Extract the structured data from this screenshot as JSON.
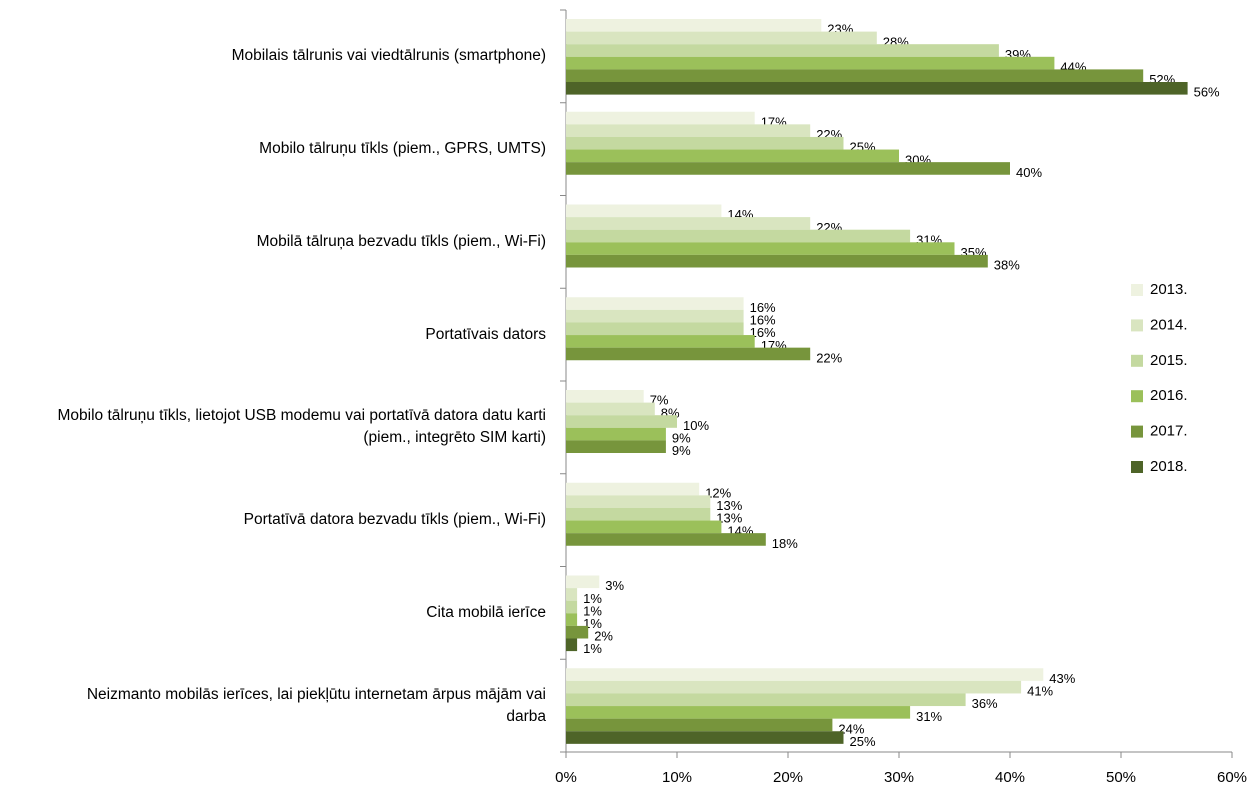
{
  "chart_data": {
    "type": "bar",
    "orientation": "horizontal",
    "categories": [
      "Mobilais tālrunis vai viedtālrunis (smartphone)",
      "Mobilo tālruņu tīkls (piem., GPRS, UMTS)",
      "Mobilā tālruņa bezvadu tīkls (piem., Wi-Fi)",
      "Portatīvais dators",
      "Mobilo tālruņu tīkls, lietojot USB modemu vai portatīvā datora datu karti (piem., integrēto SIM karti)",
      "Portatīvā datora bezvadu tīkls (piem., Wi-Fi)",
      "Cita mobilā ierīce",
      "Neizmanto mobilās ierīces, lai piekļūtu internetam ārpus mājām vai darba"
    ],
    "series": [
      {
        "name": "2013.",
        "color": "#eef2e0",
        "values": [
          23,
          17,
          14,
          16,
          7,
          12,
          3,
          43
        ],
        "value_labels": [
          "23%",
          "17%",
          "14%",
          "16%",
          "7%",
          "12%",
          "3%",
          "43%"
        ]
      },
      {
        "name": "2014.",
        "color": "#d9e5c0",
        "values": [
          28,
          22,
          22,
          16,
          8,
          13,
          1,
          41
        ],
        "value_labels": [
          "28%",
          "22%",
          "22%",
          "16%",
          "8%",
          "13%",
          "1%",
          "41%"
        ]
      },
      {
        "name": "2015.",
        "color": "#c4d9a0",
        "values": [
          39,
          25,
          31,
          16,
          10,
          13,
          1,
          36
        ],
        "value_labels": [
          "39%",
          "25%",
          "31%",
          "16%",
          "10%",
          "13%",
          "1%",
          "36%"
        ]
      },
      {
        "name": "2016.",
        "color": "#9bc05a",
        "values": [
          44,
          30,
          35,
          17,
          9,
          14,
          1,
          31
        ],
        "value_labels": [
          "44%",
          "30%",
          "35%",
          "17%",
          "9%",
          "14%",
          "1%",
          "31%"
        ]
      },
      {
        "name": "2017.",
        "color": "#77953c",
        "values": [
          52,
          40,
          38,
          22,
          9,
          18,
          2,
          24
        ],
        "value_labels": [
          "52%",
          "40%",
          "38%",
          "22%",
          "9%",
          "18%",
          "2%",
          "24%"
        ]
      },
      {
        "name": "2018.",
        "color": "#4e6428",
        "values": [
          56,
          null,
          null,
          null,
          null,
          null,
          1,
          25
        ],
        "value_labels": [
          "56%",
          null,
          null,
          null,
          null,
          null,
          "1%",
          "25%"
        ]
      }
    ],
    "xlim": [
      0,
      60
    ],
    "xticks": [
      {
        "value": 0,
        "label": "0%"
      },
      {
        "value": 10,
        "label": "10%"
      },
      {
        "value": 20,
        "label": "20%"
      },
      {
        "value": 30,
        "label": "30%"
      },
      {
        "value": 40,
        "label": "40%"
      },
      {
        "value": 50,
        "label": "50%"
      },
      {
        "value": 60,
        "label": "60%"
      }
    ],
    "legend": "right"
  }
}
